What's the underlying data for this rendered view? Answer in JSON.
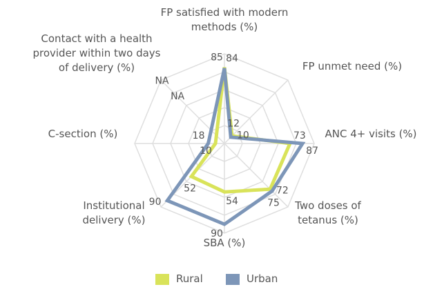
{
  "chart_data": {
    "type": "radar",
    "categories": [
      "FP satisfied with modern methods (%)",
      "FP unmet need (%)",
      "ANC 4+ visits (%)",
      "Two doses of tetanus (%)",
      "SBA (%)",
      "Institutional delivery (%)",
      "C-section (%)",
      "Contact with a health provider within two days of delivery (%)"
    ],
    "series": [
      {
        "name": "Rural",
        "color": "#d9e35a",
        "values": [
          85,
          12,
          73,
          72,
          54,
          52,
          10,
          null
        ],
        "value_labels": [
          "85",
          "12",
          "73",
          "72",
          "54",
          "52",
          "10",
          "NA"
        ]
      },
      {
        "name": "Urban",
        "color": "#7d96b8",
        "values": [
          84,
          10,
          87,
          75,
          90,
          90,
          18,
          null
        ],
        "value_labels": [
          "84",
          "10",
          "87",
          "75",
          "90",
          "90",
          "18",
          "NA"
        ]
      }
    ],
    "rlim": [
      0,
      100
    ],
    "rticks": [
      20,
      40,
      60,
      80,
      100
    ],
    "grid": true,
    "legend": "bottom"
  }
}
